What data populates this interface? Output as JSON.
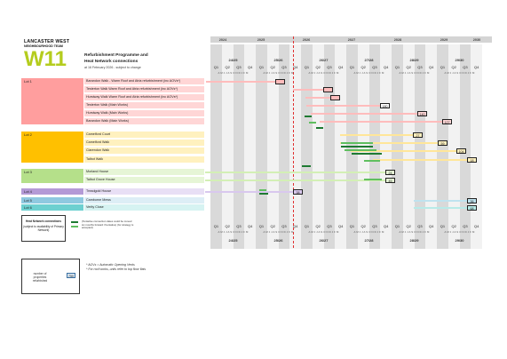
{
  "header": {
    "logo_line1": "LANCASTER WEST",
    "logo_line2": "NEIGHBOURHOOD TEAM",
    "logo_mark": "W11",
    "title_line1": "Refurbishment Programme and",
    "title_line2": "Heat Network connections",
    "date": "at 16 February 2026 - subject to change"
  },
  "timeline": {
    "years": [
      "2024",
      "2025",
      "2026",
      "2027",
      "2028",
      "2029",
      "2030"
    ],
    "financial_years": [
      "24/25",
      "25/26",
      "26/27",
      "27/28",
      "28/29",
      "29/30"
    ],
    "quarters": [
      "Q1",
      "Q2",
      "Q3",
      "Q4"
    ],
    "months": "A M J J A S O N D J F M"
  },
  "lots": [
    {
      "label": "Lot 1",
      "color": "#ff9e9e"
    },
    {
      "label": "Lot 2",
      "color": "#ffc000"
    },
    {
      "label": "Lot 3",
      "color": "#b5e08a"
    },
    {
      "label": "Lot 4",
      "color": "#b49ad6"
    },
    {
      "label": "Lot 5",
      "color": "#8fc9e0"
    },
    {
      "label": "Lot 6",
      "color": "#6dd0d0"
    }
  ],
  "rows": [
    {
      "label": "Barandon Walk - Warm Roof and Atria refurbishment (inc AOVs*)",
      "value": ""
    },
    {
      "label": "Testerton Walk Warm Roof and Atria refurbishment (inc AOVs*)",
      "value": ""
    },
    {
      "label": "Hurstway Walk Warm Roof and Atria refurbishment (inc AOVs*)",
      "value": ""
    },
    {
      "label": "Testerton Walk (Main Works)",
      "value": "180"
    },
    {
      "label": "Hurstway Walk (Main Works)",
      "value": "140"
    },
    {
      "label": "Barandon Walk (Main Works)",
      "value": "127"
    },
    {
      "label": "Camelford Court",
      "value": "27"
    },
    {
      "label": "Camelford Walk",
      "value": "59"
    },
    {
      "label": "Clarendon Walk",
      "value": "104"
    },
    {
      "label": "Talbot Walk",
      "value": "18"
    },
    {
      "label": "Morland House",
      "value": "24"
    },
    {
      "label": "Talbot Grove House",
      "value": "45"
    },
    {
      "label": "Treadgold House",
      "value": "38"
    },
    {
      "label": "Camborne Mews",
      "value": "36"
    },
    {
      "label": "Verity Close",
      "value": "68"
    }
  ],
  "legend": {
    "heat_title": "Heat Network connections",
    "heat_sub": "(subject to availability of Primary Network)",
    "tentative_note": "(Tentative connection dates could be moved six months forward if tentative) (for strategy is accepted)",
    "property_label": "number of properties refurbished",
    "property_example": "750"
  },
  "notes": {
    "n1": "* AOVs = Automatic Opening Vents",
    "n2": "* For roof works, units refer to top floor flats"
  },
  "colors": {
    "lot1_bar": "#ffbcbc",
    "lot2_bar": "#ffe699",
    "lot3_bar": "#d3efb5",
    "lot4_bar": "#d9c8ee",
    "lot5_bar": "#bfe3ef",
    "lot6_bar": "#b8ebe8",
    "heat_dark": "#1e7a32",
    "heat_light": "#5fbf5f",
    "today_line": "#e03030"
  }
}
